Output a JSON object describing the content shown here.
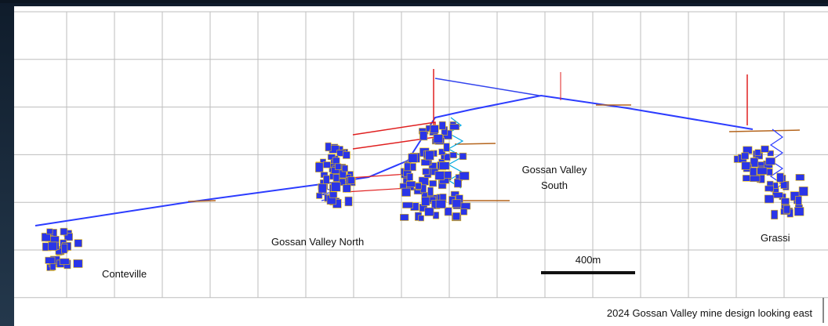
{
  "labels": {
    "conteville": "Conteville",
    "gossan_valley_north": "Gossan Valley North",
    "gossan_valley_south": [
      "Gossan Valley",
      "South"
    ],
    "grassi": "Grassi"
  },
  "scale_bar": "400m",
  "caption": "2024 Gossan Valley mine design looking east"
}
